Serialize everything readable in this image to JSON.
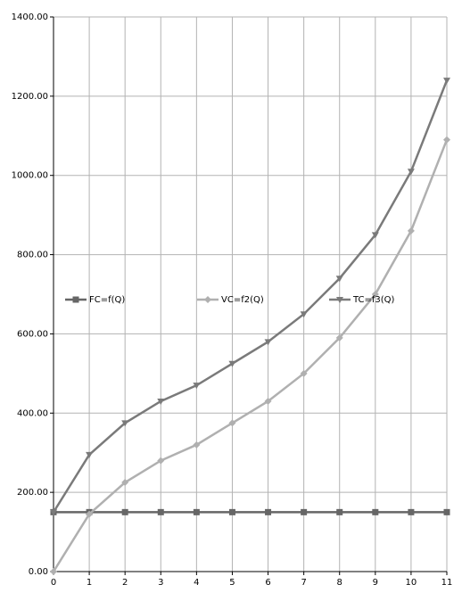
{
  "chart_data": {
    "type": "line",
    "x": [
      0,
      1,
      2,
      3,
      4,
      5,
      6,
      7,
      8,
      9,
      10,
      11
    ],
    "series": [
      {
        "name": "FC=f(Q)",
        "color": "#666666",
        "marker": "square",
        "values": [
          150,
          150,
          150,
          150,
          150,
          150,
          150,
          150,
          150,
          150,
          150,
          150
        ]
      },
      {
        "name": "VC=f2(Q)",
        "color": "#b0b0b0",
        "marker": "diamond",
        "values": [
          0,
          145,
          225,
          280,
          320,
          375,
          430,
          500,
          590,
          700,
          860,
          1090
        ]
      },
      {
        "name": "TC=f3(Q)",
        "color": "#7a7a7a",
        "marker": "triangle",
        "values": [
          150,
          295,
          375,
          430,
          470,
          525,
          580,
          650,
          740,
          850,
          1010,
          1240
        ]
      }
    ],
    "xlim": [
      0,
      11
    ],
    "xticks": [
      0,
      1,
      2,
      3,
      4,
      5,
      6,
      7,
      8,
      9,
      10,
      11
    ],
    "ylim": [
      0,
      1400
    ],
    "yticks": [
      {
        "value": 0,
        "label": "0.00"
      },
      {
        "value": 200,
        "label": "200.00"
      },
      {
        "value": 400,
        "label": "400.00"
      },
      {
        "value": 600,
        "label": "600.00"
      },
      {
        "value": 800,
        "label": "800.00"
      },
      {
        "value": 1000,
        "label": "1000.00"
      },
      {
        "value": 1200,
        "label": "1200.00"
      },
      {
        "value": 1400,
        "label": "1400.00"
      }
    ],
    "grid": true,
    "legend": "center"
  }
}
